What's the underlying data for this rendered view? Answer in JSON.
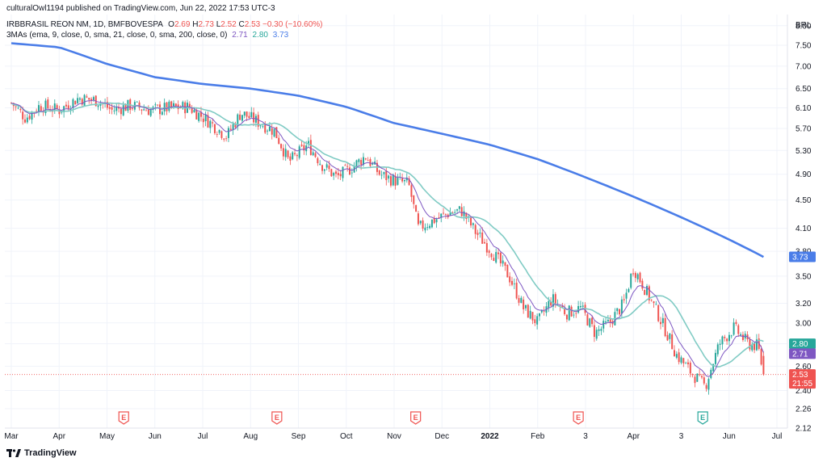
{
  "header": {
    "publisher_line": "culturalOwl1194 published on TradingView.com, Jun 22, 2022 17:53 UTC-3",
    "symbol": "IRBBRASIL REON NM, 1D, BMFBOVESPA",
    "ohlc": {
      "o_label": "O",
      "o": "2.69",
      "h_label": "H",
      "h": "2.73",
      "l_label": "L",
      "l": "2.52",
      "c_label": "C",
      "c": "2.53",
      "change": "−0.30 (−10.60%)"
    },
    "indicator": "3MAs (ema, 9, close, 0, sma, 21, close, 0, sma, 200, close, 0)",
    "indicator_values": [
      "2.71",
      "2.80",
      "3.73"
    ]
  },
  "footer": {
    "logo_text": "TradingView"
  },
  "colors": {
    "up": "#26a69a",
    "down": "#ef5350",
    "ma9": "#7e57c2",
    "ma21": "#80cbc4",
    "ma200": "#4a7de8",
    "grid": "#f0f3fa",
    "text": "#131722"
  },
  "chart_data": {
    "type": "line",
    "currency": "BRL",
    "scale": "log",
    "ylim": [
      2.12,
      8.3
    ],
    "y_ticks": [
      "8.00",
      "7.50",
      "7.00",
      "6.50",
      "6.10",
      "5.70",
      "5.30",
      "4.90",
      "4.50",
      "4.10",
      "3.80",
      "3.50",
      "3.20",
      "3.00",
      "2.80",
      "2.60",
      "2.40",
      "2.26",
      "2.12"
    ],
    "x_ticks": [
      "Mar",
      "Apr",
      "May",
      "Jun",
      "Jul",
      "Aug",
      "Sep",
      "Oct",
      "Nov",
      "Dec",
      "2022",
      "Feb",
      "3",
      "Apr",
      "3",
      "Jun",
      "Jul"
    ],
    "x_tick_pos": [
      0.0,
      1.0,
      2.0,
      3.0,
      4.0,
      5.0,
      6.0,
      7.0,
      8.0,
      9.0,
      10.0,
      11.0,
      12.0,
      13.0,
      14.0,
      15.0,
      16.0
    ],
    "candle_anchors": [
      [
        0.0,
        6.2
      ],
      [
        0.3,
        5.9
      ],
      [
        0.6,
        6.15
      ],
      [
        1.0,
        6.05
      ],
      [
        1.4,
        6.3
      ],
      [
        1.8,
        6.25
      ],
      [
        2.1,
        6.05
      ],
      [
        2.5,
        6.15
      ],
      [
        2.9,
        6.05
      ],
      [
        3.3,
        6.1
      ],
      [
        3.7,
        6.12
      ],
      [
        4.1,
        5.85
      ],
      [
        4.5,
        5.55
      ],
      [
        4.8,
        6.0
      ],
      [
        5.2,
        5.8
      ],
      [
        5.5,
        5.65
      ],
      [
        5.8,
        5.1
      ],
      [
        6.2,
        5.4
      ],
      [
        6.5,
        5.05
      ],
      [
        6.8,
        4.85
      ],
      [
        7.1,
        5.0
      ],
      [
        7.4,
        5.2
      ],
      [
        7.7,
        4.9
      ],
      [
        8.0,
        4.8
      ],
      [
        8.3,
        4.75
      ],
      [
        8.5,
        4.1
      ],
      [
        8.8,
        4.2
      ],
      [
        9.1,
        4.3
      ],
      [
        9.4,
        4.35
      ],
      [
        9.7,
        4.05
      ],
      [
        10.1,
        3.75
      ],
      [
        10.4,
        3.5
      ],
      [
        10.7,
        3.15
      ],
      [
        11.0,
        3.0
      ],
      [
        11.3,
        3.25
      ],
      [
        11.6,
        3.1
      ],
      [
        11.9,
        3.15
      ],
      [
        12.2,
        2.9
      ],
      [
        12.5,
        3.0
      ],
      [
        12.8,
        3.2
      ],
      [
        13.0,
        3.6
      ],
      [
        13.3,
        3.3
      ],
      [
        13.6,
        3.0
      ],
      [
        13.9,
        2.7
      ],
      [
        14.2,
        2.55
      ],
      [
        14.5,
        2.43
      ],
      [
        14.8,
        2.8
      ],
      [
        15.1,
        2.95
      ],
      [
        15.4,
        2.8
      ],
      [
        15.6,
        2.78
      ],
      [
        15.72,
        2.53
      ]
    ],
    "last_candle": {
      "o": 2.69,
      "h": 2.73,
      "l": 2.52,
      "c": 2.53
    },
    "ma200_anchors": [
      [
        0.0,
        7.55
      ],
      [
        1.0,
        7.45
      ],
      [
        2.0,
        7.05
      ],
      [
        3.0,
        6.75
      ],
      [
        4.0,
        6.6
      ],
      [
        5.0,
        6.5
      ],
      [
        6.0,
        6.35
      ],
      [
        7.0,
        6.12
      ],
      [
        8.0,
        5.8
      ],
      [
        9.0,
        5.6
      ],
      [
        10.0,
        5.4
      ],
      [
        11.0,
        5.15
      ],
      [
        12.0,
        4.85
      ],
      [
        13.0,
        4.55
      ],
      [
        14.0,
        4.25
      ],
      [
        15.0,
        3.95
      ],
      [
        15.72,
        3.73
      ]
    ],
    "series": [
      {
        "name": "EMA 9",
        "last": 2.71
      },
      {
        "name": "SMA 21",
        "last": 2.8
      },
      {
        "name": "SMA 200",
        "last": 3.73
      }
    ],
    "price_tags": [
      {
        "value": "3.73",
        "color": "#4a7de8"
      },
      {
        "value": "2.80",
        "color": "#26a69a"
      },
      {
        "value": "2.71",
        "color": "#7e57c2"
      },
      {
        "value": "2.53",
        "color": "#ef5350",
        "sub": "21:55"
      }
    ],
    "event_markers": [
      {
        "label": "E",
        "x": 2.35,
        "kind": "earnings"
      },
      {
        "label": "E",
        "x": 5.55,
        "kind": "earnings"
      },
      {
        "label": "E",
        "x": 8.45,
        "kind": "earnings"
      },
      {
        "label": "E",
        "x": 11.85,
        "kind": "earnings"
      },
      {
        "label": "E",
        "x": 14.45,
        "kind": "earnings-upcoming"
      }
    ],
    "current_price": 2.53
  }
}
